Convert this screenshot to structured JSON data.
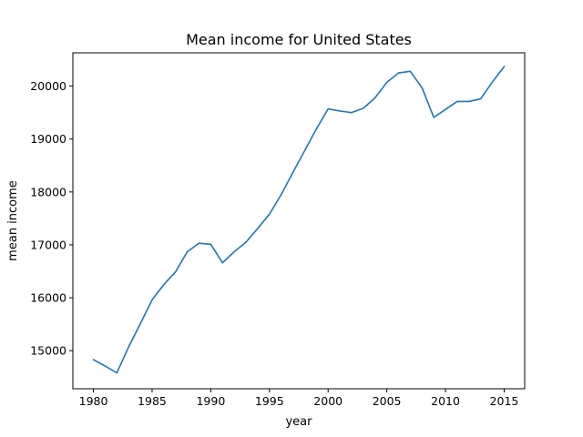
{
  "chart_data": {
    "type": "line",
    "title": "Mean income for United States",
    "xlabel": "year",
    "ylabel": "mean income",
    "xlim": [
      1978.25,
      2016.75
    ],
    "ylim": [
      14280,
      20630
    ],
    "xticks": [
      1980,
      1985,
      1990,
      1995,
      2000,
      2005,
      2010,
      2015
    ],
    "yticks": [
      15000,
      16000,
      17000,
      18000,
      19000,
      20000
    ],
    "grid": false,
    "series": [
      {
        "color": "#1f77b4",
        "x": [
          1980,
          1981,
          1982,
          1983,
          1984,
          1985,
          1986,
          1987,
          1988,
          1989,
          1990,
          1991,
          1992,
          1993,
          1994,
          1995,
          1996,
          1997,
          1998,
          1999,
          2000,
          2001,
          2002,
          2003,
          2004,
          2005,
          2006,
          2007,
          2008,
          2009,
          2010,
          2011,
          2012,
          2013,
          2014,
          2015
        ],
        "values": [
          14830,
          14710,
          14580,
          15070,
          15510,
          15960,
          16250,
          16490,
          16870,
          17030,
          17010,
          16660,
          16870,
          17050,
          17310,
          17580,
          17950,
          18370,
          18780,
          19190,
          19570,
          19530,
          19500,
          19580,
          19780,
          20070,
          20250,
          20280,
          19970,
          19410,
          19560,
          19710,
          19710,
          19760,
          20080,
          20370
        ]
      }
    ]
  }
}
